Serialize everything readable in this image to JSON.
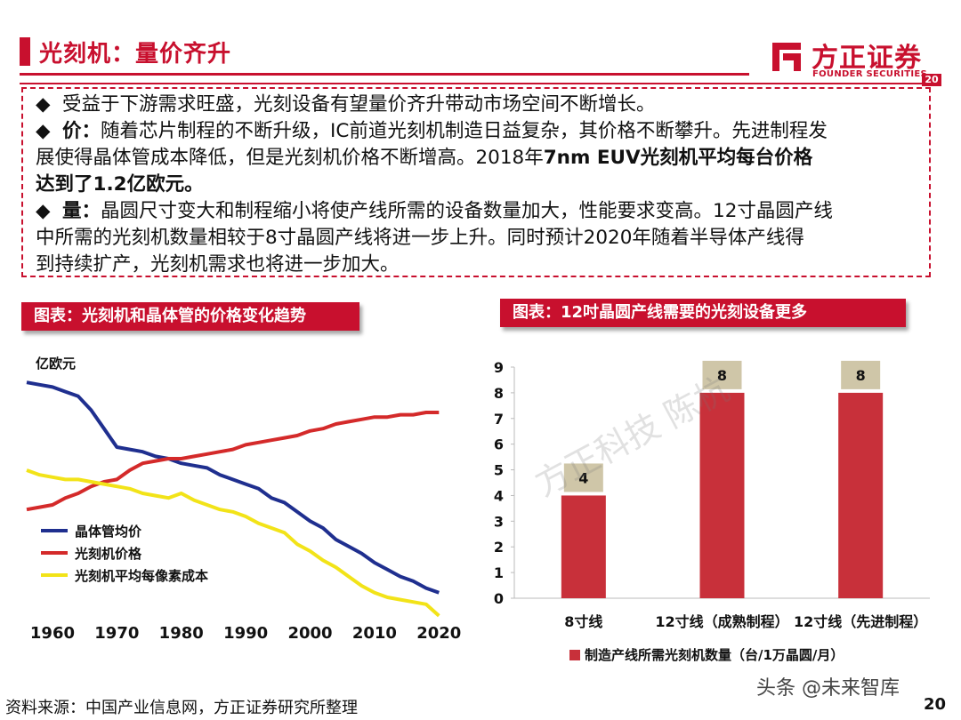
{
  "header": {
    "title": "光刻机：量价齐升",
    "logo_cn": "方正证券",
    "logo_en": "FOUNDER SECURITIES",
    "page_badge": "20"
  },
  "bullets": [
    {
      "text": "受益于下游需求旺盛，光刻设备有望量价齐升带动市场空间不断增长。"
    },
    {
      "lead": "价：",
      "text_line1": "随着芯片制程的不断升级，IC前道光刻机制造日益复杂，其价格不断攀升。先进制程发",
      "text_line2_a": "展使得晶体管成本降低，但是光刻机价格不断增高。2018年",
      "text_line2_b": "7nm EUV光刻机平均每台价格",
      "text_line3": "达到了1.2亿欧元。"
    },
    {
      "lead": "量：",
      "text_line1": "晶圆尺寸变大和制程缩小将使产线所需的设备数量加大，性能要求变高。12寸晶圆产线",
      "text_line2": "中所需的光刻机数量相较于8寸晶圆产线将进一步上升。同时预计2020年随着半导体产线得",
      "text_line3": "到持续扩产，光刻机需求也将进一步加大。"
    }
  ],
  "chart_left_title": "图表：光刻机和晶体管的价格变化趋势",
  "chart_right_title": "图表：12吋晶圆产线需要的光刻设备更多",
  "watermark": "方正科技 陈杭",
  "footer": {
    "source": "资料来源：中国产业信息网，方正证券研究所整理",
    "page_number": "20",
    "wechat_mark": "头条 @未来智库"
  },
  "colors": {
    "brand_red": "#c8102e",
    "blue": "#1f2f8f",
    "red_line": "#d42a2a",
    "yellow_line": "#f2e318",
    "bar_label_bg": "#cfc6a8"
  },
  "chart_data": [
    {
      "type": "line",
      "title": "图表：光刻机和晶体管的价格变化趋势",
      "ylabel": "亿欧元",
      "x_ticks": [
        1960,
        1970,
        1980,
        1990,
        2000,
        2010,
        2020
      ],
      "xlim": [
        1956,
        2023
      ],
      "ylim": [
        0,
        100
      ],
      "y_axis_note": "no numeric y scale shown; values are relative (0-100)",
      "legend_position": "bottom-left",
      "series": [
        {
          "name": "晶体管均价",
          "color": "#1f2f8f",
          "x": [
            1956,
            1958,
            1960,
            1962,
            1964,
            1966,
            1968,
            1970,
            1972,
            1974,
            1976,
            1978,
            1980,
            1982,
            1984,
            1986,
            1988,
            1990,
            1992,
            1994,
            1996,
            1998,
            2000,
            2002,
            2004,
            2006,
            2008,
            2010,
            2012,
            2014,
            2016,
            2018,
            2020
          ],
          "y": [
            98,
            97,
            96,
            94,
            92,
            86,
            78,
            70,
            69,
            68,
            66,
            65,
            63,
            62,
            61,
            58,
            56,
            54,
            52,
            48,
            46,
            42,
            38,
            35,
            30,
            27,
            24,
            20,
            17,
            14,
            12,
            9,
            7
          ]
        },
        {
          "name": "光刻机价格",
          "color": "#d42a2a",
          "x": [
            1956,
            1958,
            1960,
            1962,
            1964,
            1966,
            1968,
            1970,
            1972,
            1974,
            1976,
            1978,
            1980,
            1982,
            1984,
            1986,
            1988,
            1990,
            1992,
            1994,
            1996,
            1998,
            2000,
            2002,
            2004,
            2006,
            2008,
            2010,
            2012,
            2014,
            2016,
            2018,
            2020
          ],
          "y": [
            43,
            44,
            45,
            48,
            50,
            53,
            55,
            56,
            60,
            63,
            64,
            65,
            65,
            66,
            67,
            68,
            69,
            71,
            72,
            73,
            74,
            75,
            77,
            78,
            80,
            81,
            82,
            83,
            83,
            84,
            84,
            85,
            85
          ]
        },
        {
          "name": "光刻机平均每像素成本",
          "color": "#f2e318",
          "x": [
            1956,
            1958,
            1960,
            1962,
            1964,
            1966,
            1968,
            1970,
            1972,
            1974,
            1976,
            1978,
            1980,
            1982,
            1984,
            1986,
            1988,
            1990,
            1992,
            1994,
            1996,
            1998,
            2000,
            2002,
            2004,
            2006,
            2008,
            2010,
            2012,
            2014,
            2016,
            2018,
            2020
          ],
          "y": [
            60,
            58,
            57,
            56,
            56,
            55,
            54,
            53,
            52,
            50,
            49,
            48,
            50,
            47,
            45,
            43,
            42,
            40,
            37,
            35,
            33,
            28,
            25,
            21,
            18,
            14,
            10,
            7,
            5,
            4,
            3,
            2,
            -3
          ]
        }
      ]
    },
    {
      "type": "bar",
      "title": "图表：12吋晶圆产线需要的光刻设备更多",
      "categories": [
        "8寸线",
        "12寸线（成熟制程）",
        "12寸线（先进制程）"
      ],
      "series": [
        {
          "name": "制造产线所需光刻机数量（台/1万晶圆/月）",
          "values": [
            4,
            8,
            8
          ],
          "color": "#c8303a"
        }
      ],
      "ylim": [
        0,
        9
      ],
      "y_ticks": [
        0,
        1,
        2,
        3,
        4,
        5,
        6,
        7,
        8,
        9
      ],
      "data_labels": [
        "4",
        "8",
        "8"
      ],
      "legend_position": "bottom-left"
    }
  ]
}
